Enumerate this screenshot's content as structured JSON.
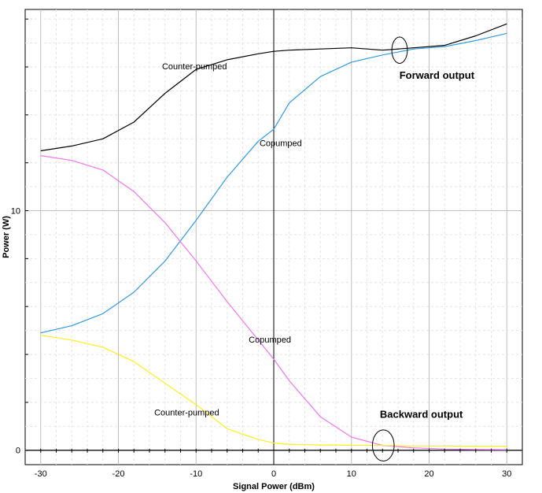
{
  "chart_data": {
    "type": "line",
    "xlabel": "Signal Power (dBm)",
    "ylabel": "Power (W)",
    "xlim": [
      -32,
      32
    ],
    "ylim": [
      -0.6,
      18.4
    ],
    "x_ticks": [
      -30,
      -20,
      -10,
      0,
      10,
      20,
      30
    ],
    "y_ticks": [
      0,
      10
    ],
    "grid": true,
    "x": [
      -30,
      -26,
      -22,
      -18,
      -14,
      -10,
      -6,
      -2,
      0,
      2,
      6,
      10,
      14,
      18,
      22,
      26,
      30
    ],
    "series": [
      {
        "label": "Counter-pumped",
        "color": "#000000",
        "values": [
          12.5,
          12.7,
          13.0,
          13.7,
          14.9,
          15.9,
          16.3,
          16.55,
          16.65,
          16.7,
          16.75,
          16.8,
          16.7,
          16.8,
          16.9,
          17.3,
          17.8
        ]
      },
      {
        "label": "Copumped",
        "color": "#3399dd",
        "values": [
          4.9,
          5.2,
          5.7,
          6.6,
          7.9,
          9.6,
          11.4,
          12.9,
          13.4,
          14.5,
          15.6,
          16.2,
          16.5,
          16.75,
          16.85,
          17.1,
          17.4
        ]
      },
      {
        "label": "Copumped",
        "color": "#ee77ee",
        "values": [
          12.3,
          12.1,
          11.7,
          10.8,
          9.5,
          7.9,
          6.2,
          4.6,
          3.8,
          2.9,
          1.4,
          0.55,
          0.2,
          0.1,
          0.05,
          0.03,
          0.02
        ]
      },
      {
        "label": "Counter-pumped",
        "color": "#ffee22",
        "values": [
          4.8,
          4.6,
          4.3,
          3.7,
          2.8,
          1.9,
          0.9,
          0.45,
          0.3,
          0.25,
          0.22,
          0.21,
          0.2,
          0.18,
          0.18,
          0.17,
          0.17
        ]
      }
    ],
    "curve_labels": [
      {
        "text": "Counter-pumped",
        "x": -10.2,
        "y": 15.9
      },
      {
        "text": "Copumped",
        "x": 0.9,
        "y": 12.7
      },
      {
        "text": "Copumped",
        "x": -0.5,
        "y": 4.5
      },
      {
        "text": "Counter-pumped",
        "x": -11.2,
        "y": 1.45
      }
    ],
    "annotations": [
      {
        "text": "Forward output",
        "x": 21,
        "y": 15.5,
        "cx": 16.2,
        "cy": 16.7,
        "rx": 1.0,
        "ry": 0.55
      },
      {
        "text": "Backward output",
        "x": 19,
        "y": 1.35,
        "cx": 14.1,
        "cy": 0.2,
        "rx": 1.4,
        "ry": 0.65
      }
    ]
  }
}
